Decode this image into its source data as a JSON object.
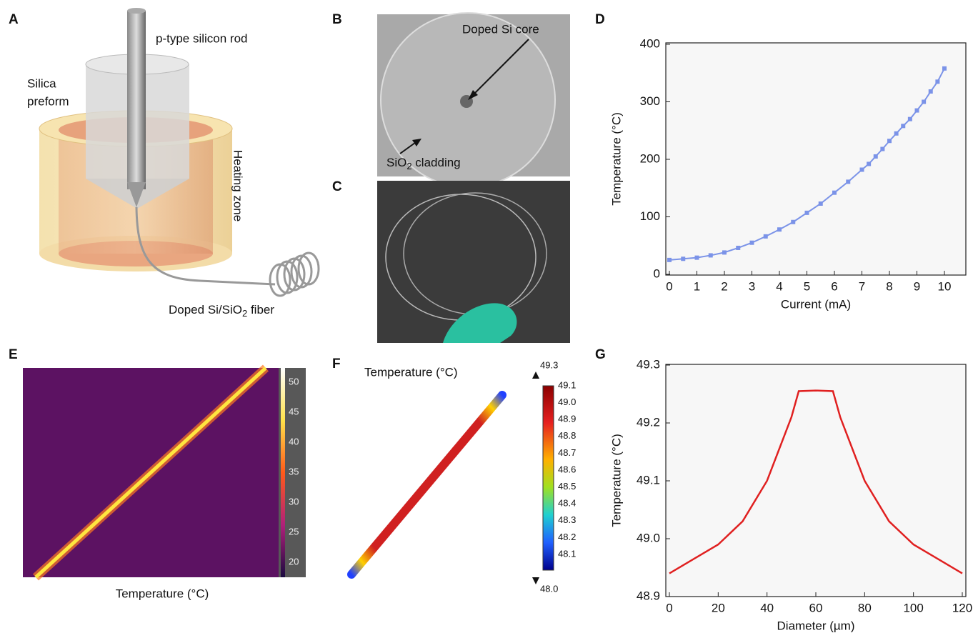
{
  "panels": {
    "letters": [
      "A",
      "B",
      "C",
      "D",
      "E",
      "F",
      "G"
    ],
    "A": {
      "rod": "p-type silicon rod",
      "preform": [
        "Silica",
        "preform"
      ],
      "zone": "Heating zone",
      "fiber": [
        "Doped Si/SiO",
        "2",
        " fiber"
      ]
    },
    "B": {
      "core": "Doped Si core",
      "cladding": [
        "SiO",
        "2",
        " cladding"
      ]
    },
    "E": {
      "caption": "Temperature (°C)",
      "colorbar": [
        "50",
        "45",
        "40",
        "35",
        "30",
        "25",
        "20"
      ]
    },
    "F": {
      "title": "Temperature (°C)",
      "max": "49.3",
      "min": "48.0",
      "colorbar": [
        "49.1",
        "49.0",
        "48.9",
        "48.8",
        "48.7",
        "48.6",
        "48.5",
        "48.4",
        "48.3",
        "48.2",
        "48.1"
      ]
    }
  },
  "chart_data": [
    {
      "type": "line",
      "x_label": "Current (mA)",
      "y_label": "Temperature (°C)",
      "x": [
        0,
        0.5,
        1,
        1.5,
        2,
        2.5,
        3,
        3.5,
        4,
        4.5,
        5,
        5.5,
        6,
        6.5,
        7,
        7.25,
        7.5,
        7.75,
        8,
        8.25,
        8.5,
        8.75,
        9,
        9.25,
        9.5,
        9.75,
        10
      ],
      "series": [
        {
          "color": "#7b93e8",
          "values": [
            25,
            27,
            29,
            33,
            38,
            46,
            55,
            66,
            78,
            91,
            107,
            123,
            142,
            161,
            182,
            192,
            205,
            218,
            232,
            245,
            258,
            270,
            285,
            300,
            318,
            335,
            358
          ]
        }
      ],
      "markers": true,
      "xlim": [
        0,
        10
      ],
      "xticks": [
        0,
        1,
        2,
        3,
        4,
        5,
        6,
        7,
        8,
        9,
        10
      ],
      "ylim": [
        0,
        400
      ],
      "yticks": [
        0,
        100,
        200,
        300,
        400
      ]
    },
    {
      "type": "line",
      "x_label": "Diameter (µm)",
      "y_label": "Temperature (°C)",
      "x": [
        0,
        10,
        20,
        30,
        40,
        50,
        53,
        60,
        67,
        70,
        80,
        90,
        100,
        110,
        120
      ],
      "series": [
        {
          "color": "#e02020",
          "values": [
            48.94,
            48.965,
            48.99,
            49.03,
            49.1,
            49.21,
            49.255,
            49.256,
            49.255,
            49.21,
            49.1,
            49.03,
            48.99,
            48.965,
            48.94
          ]
        }
      ],
      "markers": false,
      "xlim": [
        0,
        120
      ],
      "xticks": [
        0,
        20,
        40,
        60,
        80,
        100,
        120
      ],
      "ylim": [
        48.9,
        49.3
      ],
      "yticks": [
        48.9,
        {
          "value": 49,
          "label": "49.0"
        },
        49.1,
        49.2,
        49.3
      ]
    }
  ]
}
